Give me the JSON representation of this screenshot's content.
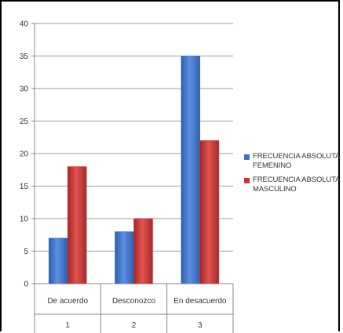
{
  "chart_data": {
    "type": "bar",
    "categories": [
      "De acuerdo",
      "Desconozco",
      "En desacuerdo"
    ],
    "category_numbers": [
      "1",
      "2",
      "3"
    ],
    "series": [
      {
        "name": "FRECUENCIA ABSOLUTA FEMENINO",
        "values": [
          7,
          8,
          35
        ],
        "color": "#3d73c6"
      },
      {
        "name": "FRECUENCIA ABSOLUTA MASCULINO",
        "values": [
          18,
          10,
          22
        ],
        "color": "#c23a38"
      }
    ],
    "ylim": [
      0,
      40
    ],
    "yticks": [
      "0",
      "5",
      "10",
      "15",
      "20",
      "25",
      "30",
      "35",
      "40"
    ],
    "grid": true,
    "legend_position": "right",
    "title": "",
    "xlabel": "",
    "ylabel": ""
  }
}
